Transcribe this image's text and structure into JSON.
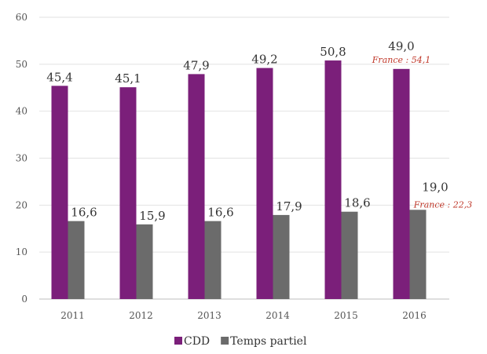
{
  "chart_data": {
    "type": "bar",
    "categories": [
      "2011",
      "2012",
      "2013",
      "2014",
      "2015",
      "2016"
    ],
    "series": [
      {
        "name": "CDD",
        "values": [
          45.4,
          45.1,
          47.9,
          49.2,
          50.8,
          49.0
        ],
        "labels": [
          "45,4",
          "45,1",
          "47,9",
          "49,2",
          "50,8",
          "49,0"
        ],
        "color": "#7b1f7a"
      },
      {
        "name": "Temps partiel",
        "values": [
          16.6,
          15.9,
          16.6,
          17.9,
          18.6,
          19.0
        ],
        "labels": [
          "16,6",
          "15,9",
          "16,6",
          "17,9",
          "18,6",
          "19,0"
        ],
        "color": "#6b6b6b"
      }
    ],
    "ylim": [
      0,
      60
    ],
    "yticks": [
      0,
      10,
      20,
      30,
      40,
      50,
      60
    ],
    "grid": true,
    "legend": "bottom-center",
    "annotations": [
      {
        "text": "France : 54,1",
        "category": "2016",
        "series": "CDD",
        "color": "#c0392b"
      },
      {
        "text": "France : 22,3",
        "category": "2016",
        "series": "Temps partiel",
        "color": "#c0392b"
      }
    ]
  }
}
